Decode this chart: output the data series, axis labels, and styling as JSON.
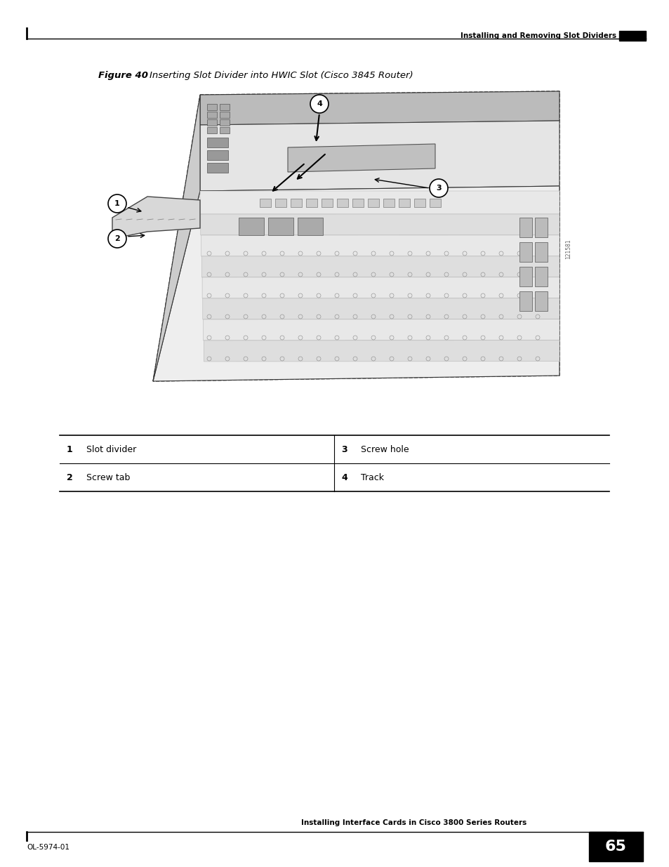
{
  "page_width": 9.54,
  "page_height": 12.35,
  "dpi": 100,
  "bg_color": "#ffffff",
  "top_header_text": "Installing and Removing Slot Dividers",
  "figure_caption_bold": "Figure 40",
  "figure_caption_italic": "    Inserting Slot Divider into HWIC Slot (Cisco 3845 Router)",
  "table_rows": [
    {
      "num1": "1",
      "label1": "Slot divider",
      "num2": "3",
      "label2": "Screw hole"
    },
    {
      "num1": "2",
      "label1": "Screw tab",
      "num2": "4",
      "label2": "Track"
    }
  ],
  "footer_center_text": "Installing Interface Cards in Cisco 3800 Series Routers",
  "footer_left_text": "OL-5974-01",
  "footer_page_num": "65",
  "credit_text": "121581"
}
